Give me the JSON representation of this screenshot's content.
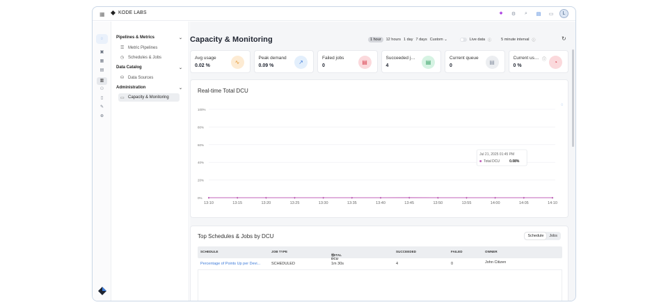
{
  "app": {
    "brand": "KODE LABS",
    "avatar_initial": "L"
  },
  "sidebar": {
    "sections": [
      {
        "label": "Pipelines & Metrics",
        "items": [
          {
            "label": "Metric Pipelines"
          },
          {
            "label": "Schedules & Jobs"
          }
        ]
      },
      {
        "label": "Data Catalog",
        "items": [
          {
            "label": "Data Sources"
          }
        ]
      },
      {
        "label": "Administration",
        "items": [
          {
            "label": "Capacity & Monitoring"
          }
        ]
      }
    ]
  },
  "page": {
    "title": "Capacity & Monitoring",
    "time_ranges": [
      "1 hour",
      "12 hours",
      "1 day",
      "7 days"
    ],
    "selected_range": "1 hour",
    "custom_label": "Custom",
    "live_data_label": "Live data",
    "interval_label": "5 minute interval"
  },
  "cards": [
    {
      "label": "Avg usage",
      "value": "0.02 %",
      "icon": "activity-icon",
      "badge_bg": "#fdebd3",
      "badge_fg": "#e3932b"
    },
    {
      "label": "Peak demand",
      "value": "0.09 %",
      "icon": "trend-up-icon",
      "badge_bg": "#e3effc",
      "badge_fg": "#3d7bd9"
    },
    {
      "label": "Failed jobs",
      "value": "0",
      "icon": "document-icon",
      "badge_bg": "#fbd9dc",
      "badge_fg": "#d8404f"
    },
    {
      "label": "Succeeded jobs",
      "value": "4",
      "icon": "document-icon",
      "badge_bg": "#d6f3e3",
      "badge_fg": "#2e9b5e"
    },
    {
      "label": "Current queue",
      "value": "0",
      "icon": "document-icon",
      "badge_bg": "#eceef1",
      "badge_fg": "#8a93a3"
    },
    {
      "label": "Current usage",
      "value": "0 %",
      "icon": "gauge-icon",
      "badge_bg": "#fbd9dc",
      "badge_fg": "#d8404f"
    }
  ],
  "chart": {
    "title": "Real-time Total DCU",
    "tooltip_time": "Jul 21, 2025 01:45 PM",
    "tooltip_series": "Total DCU",
    "tooltip_value": "0.08%"
  },
  "chart_data": {
    "type": "line",
    "title": "Real-time Total DCU",
    "x": [
      "13:10",
      "13:15",
      "13:20",
      "13:25",
      "13:30",
      "13:35",
      "13:40",
      "13:45",
      "13:50",
      "13:55",
      "14:00",
      "14:05",
      "14:10"
    ],
    "yticks": [
      "0%",
      "20%",
      "40%",
      "60%",
      "80%",
      "100%"
    ],
    "ylim": [
      0,
      100
    ],
    "series": [
      {
        "name": "Total DCU",
        "values": [
          0,
          0,
          0,
          0,
          0,
          0,
          0,
          0.08,
          0,
          0,
          0,
          0,
          0
        ],
        "color": "#c060b8"
      }
    ],
    "grid": true
  },
  "table": {
    "title": "Top Schedules & Jobs by DCU",
    "tabs": [
      "Schedule",
      "Jobs"
    ],
    "active_tab": "Schedule",
    "columns": [
      "SCHEDULE",
      "JOB TYPE",
      "TOTAL DCU",
      "SUCCEEDED",
      "FAILED",
      "OWNER"
    ],
    "rows": [
      {
        "schedule": "Percentage of Points Up per Devi...",
        "job_type": "SCHEDULED",
        "total_dcu": "1m 30s",
        "succeeded": "4",
        "failed": "0",
        "owner": "John Citizen"
      }
    ]
  }
}
